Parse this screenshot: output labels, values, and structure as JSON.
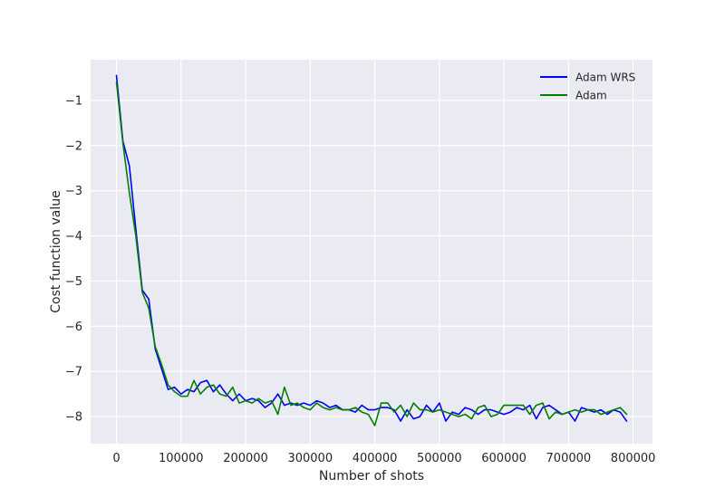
{
  "chart_data": {
    "type": "line",
    "title": "",
    "xlabel": "Number of shots",
    "ylabel": "Cost function value",
    "xlim": [
      -40000,
      830000
    ],
    "ylim": [
      -8.6,
      -0.1
    ],
    "xticks": [
      0,
      100000,
      200000,
      300000,
      400000,
      500000,
      600000,
      700000,
      800000
    ],
    "yticks": [
      -1,
      -2,
      -3,
      -4,
      -5,
      -6,
      -7,
      -8
    ],
    "grid": true,
    "legend_position": "top-right",
    "series": [
      {
        "name": "Adam WRS",
        "color": "#0000ff",
        "x": [
          0,
          10000,
          20000,
          30000,
          40000,
          50000,
          60000,
          70000,
          80000,
          90000,
          100000,
          110000,
          120000,
          130000,
          140000,
          150000,
          160000,
          170000,
          180000,
          190000,
          200000,
          210000,
          220000,
          230000,
          240000,
          250000,
          260000,
          270000,
          280000,
          290000,
          300000,
          310000,
          320000,
          330000,
          340000,
          350000,
          360000,
          370000,
          380000,
          390000,
          400000,
          410000,
          420000,
          430000,
          440000,
          450000,
          460000,
          470000,
          480000,
          490000,
          500000,
          510000,
          520000,
          530000,
          540000,
          550000,
          560000,
          570000,
          580000,
          590000,
          600000,
          610000,
          620000,
          630000,
          640000,
          650000,
          660000,
          670000,
          680000,
          690000,
          700000,
          710000,
          720000,
          730000,
          740000,
          750000,
          760000,
          770000,
          780000,
          790000
        ],
        "values": [
          -0.45,
          -1.9,
          -2.45,
          -3.85,
          -5.2,
          -5.4,
          -6.5,
          -6.95,
          -7.4,
          -7.35,
          -7.5,
          -7.4,
          -7.45,
          -7.25,
          -7.2,
          -7.45,
          -7.3,
          -7.5,
          -7.65,
          -7.5,
          -7.65,
          -7.6,
          -7.65,
          -7.8,
          -7.7,
          -7.5,
          -7.75,
          -7.7,
          -7.75,
          -7.7,
          -7.75,
          -7.65,
          -7.7,
          -7.8,
          -7.75,
          -7.85,
          -7.85,
          -7.9,
          -7.75,
          -7.85,
          -7.85,
          -7.8,
          -7.8,
          -7.85,
          -8.1,
          -7.85,
          -8.05,
          -8.0,
          -7.75,
          -7.9,
          -7.7,
          -8.1,
          -7.9,
          -7.95,
          -7.8,
          -7.85,
          -7.95,
          -7.85,
          -7.85,
          -7.9,
          -7.95,
          -7.9,
          -7.8,
          -7.85,
          -7.75,
          -8.05,
          -7.8,
          -7.75,
          -7.85,
          -7.95,
          -7.9,
          -8.1,
          -7.8,
          -7.85,
          -7.9,
          -7.85,
          -7.95,
          -7.85,
          -7.9,
          -8.1
        ]
      },
      {
        "name": "Adam",
        "color": "#008000",
        "x": [
          0,
          10000,
          20000,
          30000,
          40000,
          50000,
          60000,
          70000,
          80000,
          90000,
          100000,
          110000,
          120000,
          130000,
          140000,
          150000,
          160000,
          170000,
          180000,
          190000,
          200000,
          210000,
          220000,
          230000,
          240000,
          250000,
          260000,
          270000,
          280000,
          290000,
          300000,
          310000,
          320000,
          330000,
          340000,
          350000,
          360000,
          370000,
          380000,
          390000,
          400000,
          410000,
          420000,
          430000,
          440000,
          450000,
          460000,
          470000,
          480000,
          490000,
          500000,
          510000,
          520000,
          530000,
          540000,
          550000,
          560000,
          570000,
          580000,
          590000,
          600000,
          610000,
          620000,
          630000,
          640000,
          650000,
          660000,
          670000,
          680000,
          690000,
          700000,
          710000,
          720000,
          730000,
          740000,
          750000,
          760000,
          770000,
          780000,
          790000
        ],
        "values": [
          -0.6,
          -1.95,
          -3.05,
          -4.0,
          -5.25,
          -5.6,
          -6.45,
          -6.85,
          -7.3,
          -7.45,
          -7.55,
          -7.55,
          -7.2,
          -7.5,
          -7.35,
          -7.3,
          -7.5,
          -7.55,
          -7.35,
          -7.7,
          -7.65,
          -7.7,
          -7.6,
          -7.7,
          -7.65,
          -7.95,
          -7.35,
          -7.75,
          -7.7,
          -7.8,
          -7.85,
          -7.7,
          -7.8,
          -7.85,
          -7.8,
          -7.85,
          -7.85,
          -7.8,
          -7.9,
          -7.95,
          -8.2,
          -7.7,
          -7.7,
          -7.9,
          -7.75,
          -8.0,
          -7.7,
          -7.85,
          -7.85,
          -7.9,
          -7.85,
          -7.9,
          -7.95,
          -8.0,
          -7.95,
          -8.05,
          -7.8,
          -7.75,
          -8.0,
          -7.95,
          -7.75,
          -7.75,
          -7.75,
          -7.75,
          -7.95,
          -7.75,
          -7.7,
          -8.05,
          -7.9,
          -7.95,
          -7.9,
          -7.85,
          -7.9,
          -7.85,
          -7.85,
          -7.95,
          -7.9,
          -7.85,
          -7.8,
          -7.95
        ]
      }
    ]
  }
}
